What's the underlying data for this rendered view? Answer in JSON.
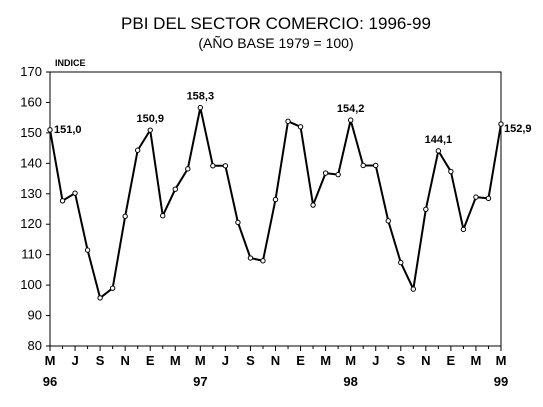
{
  "chart_data": {
    "type": "line",
    "title": "PBI DEL SECTOR COMERCIO: 1996-99",
    "subtitle": "(AÑO BASE  1979 = 100)",
    "ylabel": "INDICE",
    "xlabel": "",
    "ylim": [
      80,
      170
    ],
    "yticks": [
      "80",
      "90",
      "100",
      "110",
      "120",
      "130",
      "140",
      "150",
      "160",
      "170"
    ],
    "x_tick_labels": [
      "M",
      "J",
      "S",
      "N",
      "E",
      "M",
      "M",
      "J",
      "S",
      "N",
      "E",
      "M",
      "M",
      "J",
      "S",
      "N",
      "E",
      "M",
      "M"
    ],
    "year_labels": [
      {
        "label": "96",
        "at_month": 0
      },
      {
        "label": "97",
        "at_month": 12
      },
      {
        "label": "98",
        "at_month": 24
      },
      {
        "label": "99",
        "at_month": 36
      }
    ],
    "grid": false,
    "legend": "none",
    "series": [
      {
        "values": [
          151.0,
          127.7,
          130.2,
          111.5,
          95.8,
          99.0,
          122.6,
          144.3,
          150.9,
          122.8,
          131.5,
          138.2,
          158.3,
          139.2,
          139.2,
          120.6,
          108.9,
          108.0,
          128.1,
          153.8,
          152.0,
          126.3,
          136.8,
          136.3,
          154.2,
          139.3,
          139.3,
          121.1,
          107.4,
          98.7,
          124.9,
          144.1,
          137.3,
          118.3,
          128.9,
          128.5,
          152.9
        ],
        "data_labels": [
          {
            "index": 0,
            "text": "151,0"
          },
          {
            "index": 8,
            "text": "150,9"
          },
          {
            "index": 12,
            "text": "158,3"
          },
          {
            "index": 24,
            "text": "154,2"
          },
          {
            "index": 31,
            "text": "144,1"
          },
          {
            "index": 36,
            "text": "152,9"
          }
        ]
      }
    ]
  }
}
